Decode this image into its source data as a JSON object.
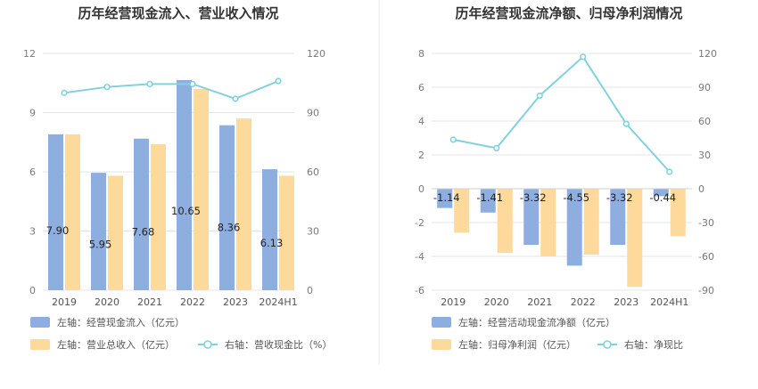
{
  "colors": {
    "bar_primary": "#8eaee0",
    "bar_secondary": "#fdd99b",
    "line": "#82d2dc",
    "grid": "#e6e6e6",
    "divider": "#eeeeee"
  },
  "chart_data": [
    {
      "type": "bar",
      "title": "历年经营现金流入、营业收入情况",
      "categories": [
        "2019",
        "2020",
        "2021",
        "2022",
        "2023",
        "2024H1"
      ],
      "left_axis": {
        "ticks": [
          "0",
          "3",
          "6",
          "9",
          "12"
        ],
        "ylim": [
          0,
          12
        ]
      },
      "right_axis": {
        "ticks": [
          "0",
          "30",
          "60",
          "90",
          "120"
        ],
        "ylim": [
          0,
          120
        ]
      },
      "series": [
        {
          "name": "经营现金流入",
          "axis": "left",
          "kind": "bar",
          "color": "#8eaee0",
          "values": [
            7.9,
            5.95,
            7.68,
            10.65,
            8.36,
            6.13
          ],
          "labels": [
            "7.90",
            "5.95",
            "7.68",
            "10.65",
            "8.36",
            "6.13"
          ]
        },
        {
          "name": "营业总收入",
          "axis": "left",
          "kind": "bar",
          "color": "#fdd99b",
          "values": [
            7.9,
            5.8,
            7.4,
            10.2,
            8.7,
            5.8
          ]
        },
        {
          "name": "营收现金比",
          "axis": "right",
          "kind": "line",
          "color": "#82d2dc",
          "values": [
            100,
            103,
            104.5,
            104.5,
            97,
            106
          ]
        }
      ],
      "legend": [
        {
          "marker": "bar_primary",
          "text": "左轴：经营现金流入（亿元）"
        },
        {
          "marker": "bar_secondary",
          "text": "左轴：营业总收入（亿元）"
        },
        {
          "marker": "line",
          "text": "右轴：营收现金比（%）"
        }
      ]
    },
    {
      "type": "bar",
      "title": "历年经营现金流净额、归母净利润情况",
      "categories": [
        "2019",
        "2020",
        "2021",
        "2022",
        "2023",
        "2024H1"
      ],
      "left_axis": {
        "ticks": [
          "-6",
          "-4",
          "-2",
          "0",
          "2",
          "4",
          "6",
          "8"
        ],
        "ylim": [
          -6,
          8
        ]
      },
      "right_axis": {
        "ticks": [
          "-90",
          "-60",
          "-30",
          "0",
          "30",
          "60",
          "90",
          "120"
        ],
        "ylim": [
          -90,
          120
        ]
      },
      "series": [
        {
          "name": "经营活动现金流净额",
          "axis": "left",
          "kind": "bar",
          "color": "#8eaee0",
          "values": [
            -1.14,
            -1.41,
            -3.32,
            -4.55,
            -3.32,
            -0.44
          ],
          "labels": [
            "-1.14",
            "-1.41",
            "-3.32",
            "-4.55",
            "-3.32",
            "-0.44"
          ]
        },
        {
          "name": "归母净利润",
          "axis": "left",
          "kind": "bar",
          "color": "#fdd99b",
          "values": [
            -2.6,
            -3.8,
            -4.0,
            -3.9,
            -5.8,
            -2.8
          ]
        },
        {
          "name": "净现比",
          "axis": "right",
          "kind": "line",
          "color": "#82d2dc",
          "values": [
            43.5,
            36,
            82.5,
            117,
            57.5,
            15
          ]
        }
      ],
      "legend": [
        {
          "marker": "bar_primary",
          "text": "左轴：经营活动现金流净额（亿元）"
        },
        {
          "marker": "bar_secondary",
          "text": "左轴：归母净利润（亿元）"
        },
        {
          "marker": "line",
          "text": "右轴：净现比"
        }
      ]
    }
  ]
}
